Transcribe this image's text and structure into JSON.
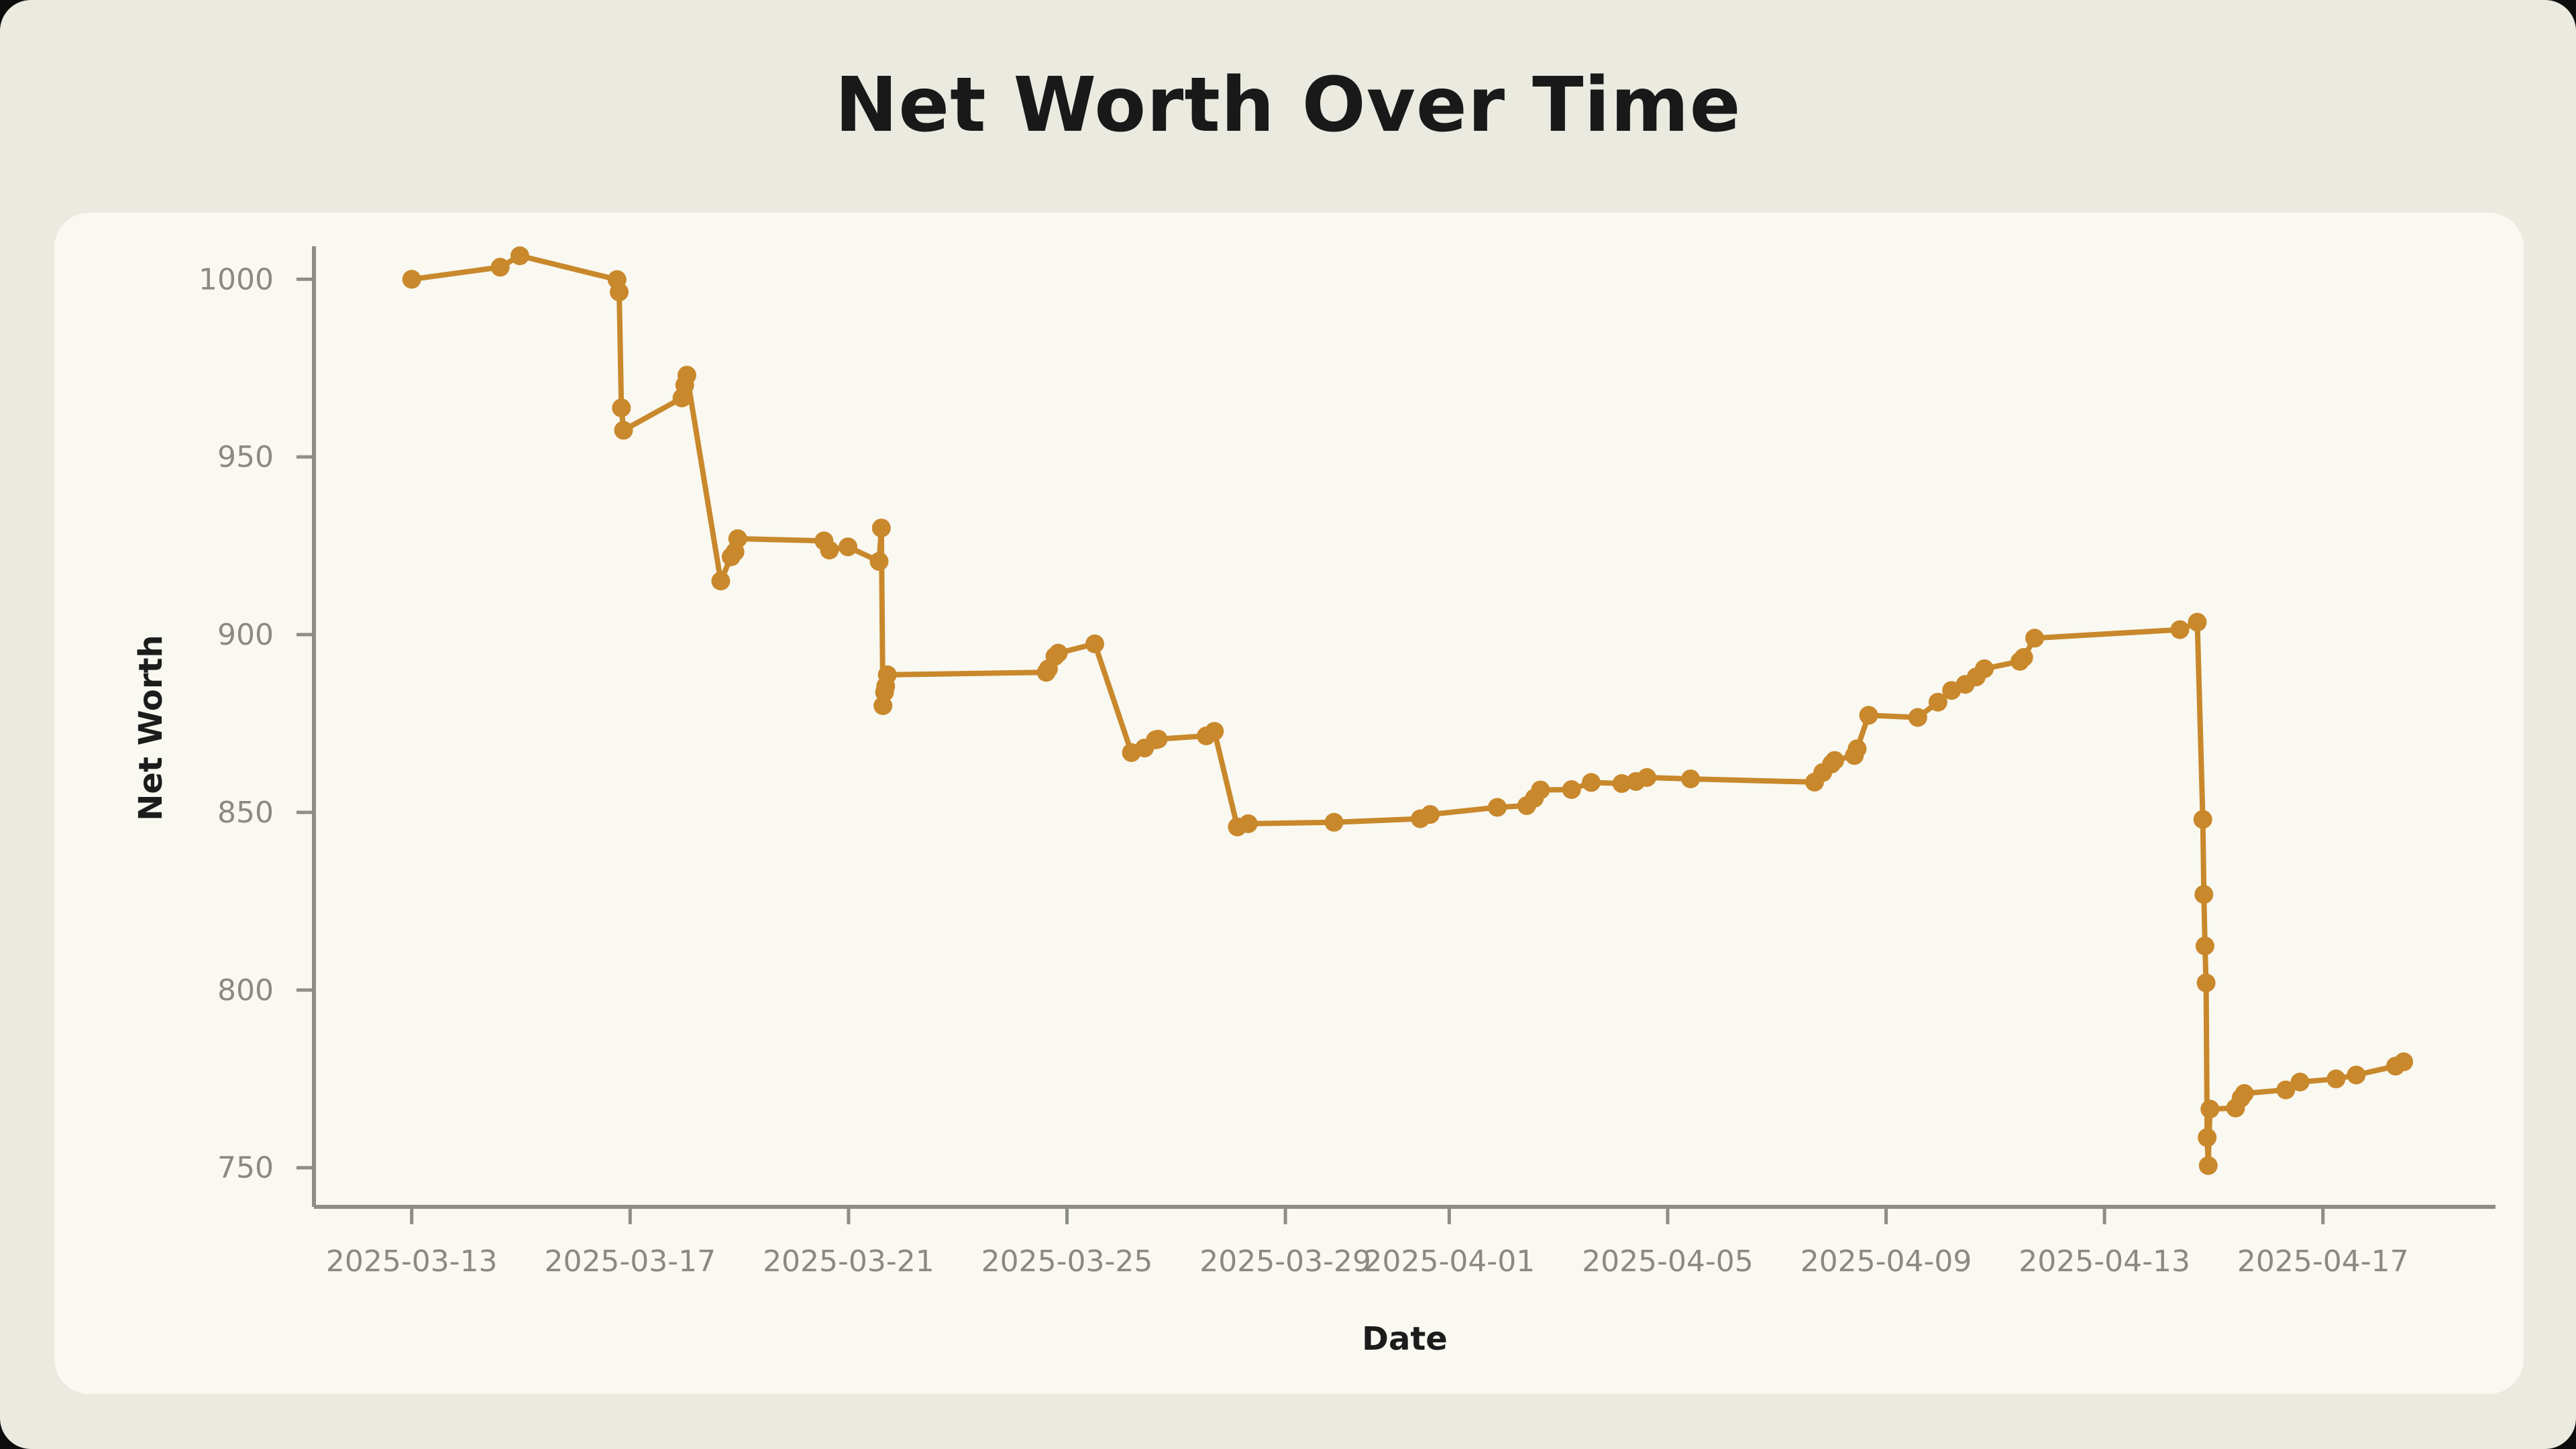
{
  "page_title": "Net Worth Over Time",
  "colors": {
    "window_background": "#0d0d0d",
    "page_background": "#EAEAE1",
    "card_background": "#F9F8F1",
    "line": "#C8882B",
    "axis": "#8E8E85",
    "tick_label": "#8A8A81",
    "title_text": "#191919",
    "axis_title_text": "#1c1c1c"
  },
  "chart_data": {
    "type": "line",
    "title": "Net Worth Over Time",
    "xlabel": "Date",
    "ylabel": "Net Worth",
    "grid": false,
    "legend": "none",
    "marker": "circle",
    "x_axis": {
      "unit": "days since 2025-03-13 (fractional = intraday sample)",
      "lim": [
        -1.79,
        38.16
      ],
      "ticks": [
        {
          "d": 0,
          "label": "2025-03-13"
        },
        {
          "d": 4,
          "label": "2025-03-17"
        },
        {
          "d": 8,
          "label": "2025-03-21"
        },
        {
          "d": 12,
          "label": "2025-03-25"
        },
        {
          "d": 16,
          "label": "2025-03-29"
        },
        {
          "d": 19,
          "label": "2025-04-01"
        },
        {
          "d": 23,
          "label": "2025-04-05"
        },
        {
          "d": 27,
          "label": "2025-04-09"
        },
        {
          "d": 31,
          "label": "2025-04-13"
        },
        {
          "d": 35,
          "label": "2025-04-17"
        }
      ]
    },
    "y_axis": {
      "lim": [
        739.0,
        1009.3
      ],
      "ticks": [
        750,
        800,
        850,
        900,
        950,
        1000
      ]
    },
    "series": [
      {
        "name": "Net Worth",
        "color": "#C8882B",
        "points": [
          [
            0.0,
            1000.0
          ],
          [
            1.62,
            1003.4
          ],
          [
            1.98,
            1006.6
          ],
          [
            3.76,
            999.9
          ],
          [
            3.8,
            996.4
          ],
          [
            3.84,
            963.8
          ],
          [
            3.88,
            957.5
          ],
          [
            4.95,
            966.6
          ],
          [
            5.0,
            970.2
          ],
          [
            5.04,
            973.0
          ],
          [
            5.66,
            915.1
          ],
          [
            5.85,
            921.9
          ],
          [
            5.92,
            923.3
          ],
          [
            5.97,
            927.0
          ],
          [
            7.55,
            926.4
          ],
          [
            7.65,
            923.8
          ],
          [
            7.99,
            924.7
          ],
          [
            8.56,
            920.6
          ],
          [
            8.6,
            930.0
          ],
          [
            8.63,
            880.0
          ],
          [
            8.66,
            883.8
          ],
          [
            8.68,
            885.5
          ],
          [
            8.71,
            888.7
          ],
          [
            11.62,
            889.4
          ],
          [
            11.66,
            890.4
          ],
          [
            11.78,
            893.9
          ],
          [
            11.84,
            894.8
          ],
          [
            12.51,
            897.4
          ],
          [
            13.18,
            866.8
          ],
          [
            13.42,
            868.1
          ],
          [
            13.62,
            870.4
          ],
          [
            13.67,
            870.6
          ],
          [
            14.55,
            871.5
          ],
          [
            14.7,
            872.8
          ],
          [
            15.12,
            845.9
          ],
          [
            15.32,
            846.8
          ],
          [
            16.89,
            847.2
          ],
          [
            18.47,
            848.2
          ],
          [
            18.65,
            849.4
          ],
          [
            19.88,
            851.4
          ],
          [
            20.42,
            851.9
          ],
          [
            20.56,
            854.0
          ],
          [
            20.67,
            856.3
          ],
          [
            21.24,
            856.4
          ],
          [
            21.6,
            858.4
          ],
          [
            22.16,
            858.1
          ],
          [
            22.42,
            858.7
          ],
          [
            22.62,
            859.8
          ],
          [
            23.42,
            859.4
          ],
          [
            25.69,
            858.5
          ],
          [
            25.84,
            861.2
          ],
          [
            26.0,
            863.6
          ],
          [
            26.06,
            864.6
          ],
          [
            26.42,
            866.0
          ],
          [
            26.47,
            867.9
          ],
          [
            26.68,
            877.3
          ],
          [
            27.58,
            876.7
          ],
          [
            27.95,
            881.0
          ],
          [
            28.2,
            884.3
          ],
          [
            28.45,
            886.0
          ],
          [
            28.65,
            888.1
          ],
          [
            28.8,
            890.4
          ],
          [
            29.45,
            892.5
          ],
          [
            29.52,
            893.6
          ],
          [
            29.72,
            899.0
          ],
          [
            32.38,
            901.4
          ],
          [
            32.7,
            903.5
          ],
          [
            32.8,
            848.0
          ],
          [
            32.82,
            826.9
          ],
          [
            32.84,
            812.4
          ],
          [
            32.86,
            802.0
          ],
          [
            32.88,
            758.5
          ],
          [
            32.9,
            750.6
          ],
          [
            32.93,
            766.5
          ],
          [
            33.4,
            766.8
          ],
          [
            33.5,
            769.6
          ],
          [
            33.56,
            770.9
          ],
          [
            34.32,
            771.9
          ],
          [
            34.58,
            774.1
          ],
          [
            35.24,
            775.0
          ],
          [
            35.61,
            776.1
          ],
          [
            36.33,
            778.6
          ],
          [
            36.48,
            779.8
          ]
        ]
      }
    ]
  }
}
